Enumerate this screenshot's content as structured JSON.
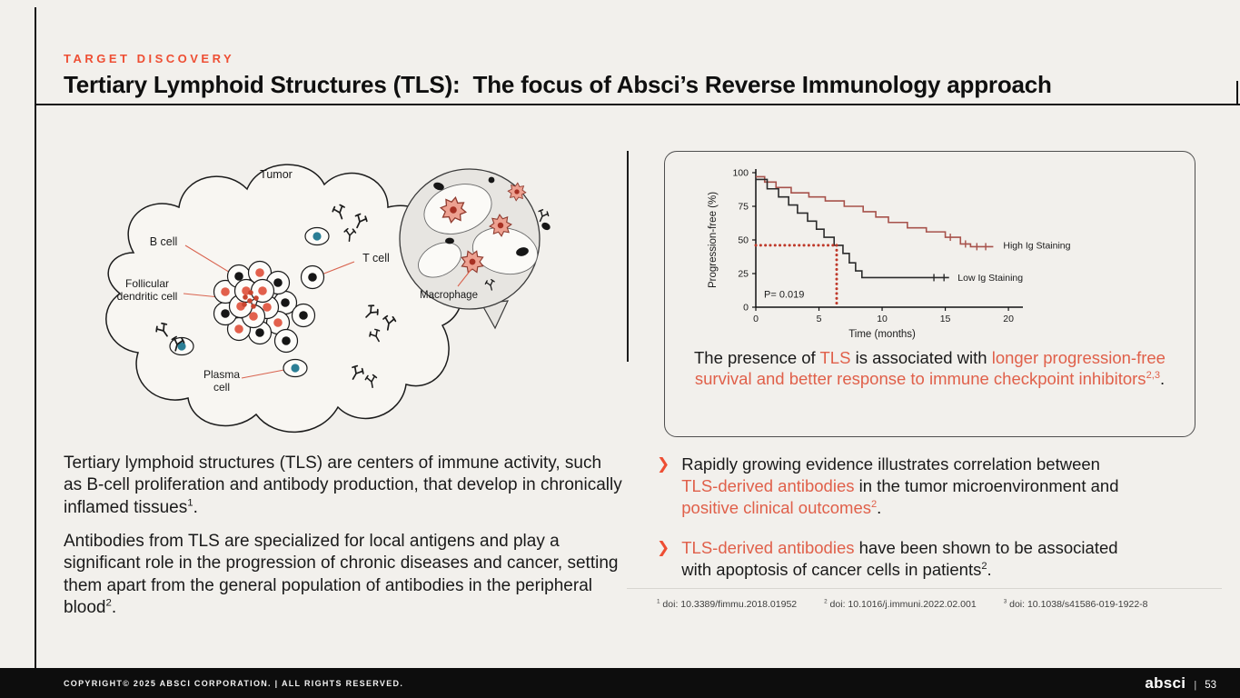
{
  "colors": {
    "ink": "#1a1a1a",
    "accent": "#ee4e33",
    "accentSoft": "#e0604a",
    "chartRed": "#a7524b",
    "dotRed": "#bf3a2b",
    "teal": "#2b7e95",
    "bg": "#f2f0ec",
    "footerBg": "#0d0d0d"
  },
  "header": {
    "kicker": "TARGET DISCOVERY",
    "title": "Tertiary Lymphoid Structures (TLS):  The focus of Absci’s Reverse Immunology approach"
  },
  "diagram": {
    "labels": {
      "tumor": "Tumor",
      "b_cell": "B cell",
      "t_cell": "T cell",
      "follicular_1": "Follicular",
      "follicular_2": "dendritic cell",
      "plasma_1": "Plasma",
      "plasma_2": "cell",
      "macrophage": "Macrophage"
    }
  },
  "left_text": {
    "para1": [
      {
        "t": "Tertiary lymphoid structures (TLS) are centers of immune activity, such as B-cell proliferation and antibody production, that develop in chronically inflamed tissues",
        "c": "ink"
      },
      {
        "t": "1",
        "c": "ink",
        "sup": true
      },
      {
        "t": ".",
        "c": "ink"
      }
    ],
    "para2": [
      {
        "t": "Antibodies from TLS are specialized for local antigens and play a significant role in the progression of chronic diseases and cancer, setting them apart from the general population of antibodies in the peripheral blood",
        "c": "ink"
      },
      {
        "t": "2",
        "c": "ink",
        "sup": true
      },
      {
        "t": ".",
        "c": "ink"
      }
    ]
  },
  "chart_box": {
    "caption": [
      {
        "t": "The presence of ",
        "c": "ink"
      },
      {
        "t": "TLS",
        "c": "accentSoft"
      },
      {
        "t": " is associated with ",
        "c": "ink"
      },
      {
        "t": "longer progression-free survival and better response to immune checkpoint inhibitors",
        "c": "accentSoft"
      },
      {
        "t": "2,3",
        "c": "accentSoft",
        "sup": true
      },
      {
        "t": ".",
        "c": "ink"
      }
    ]
  },
  "chart_data": {
    "type": "line",
    "subtype": "kaplan-meier step curves",
    "xlabel": "Time (months)",
    "ylabel": "Progression-free (%)",
    "xlim": [
      0,
      21
    ],
    "ylim": [
      0,
      100
    ],
    "x_ticks": [
      0,
      5,
      10,
      15,
      20
    ],
    "y_ticks": [
      0,
      25,
      50,
      75,
      100
    ],
    "p_value": "P= 0.019",
    "grid": false,
    "legend_position": "right-of-curves",
    "series": [
      {
        "name": "High Ig Staining",
        "color": "#a7524b",
        "points": [
          [
            0,
            97
          ],
          [
            0.7,
            97
          ],
          [
            0.7,
            93
          ],
          [
            1.6,
            93
          ],
          [
            1.6,
            89
          ],
          [
            2.8,
            89
          ],
          [
            2.8,
            85
          ],
          [
            4.2,
            85
          ],
          [
            4.2,
            82
          ],
          [
            5.5,
            82
          ],
          [
            5.5,
            79
          ],
          [
            7,
            79
          ],
          [
            7,
            75
          ],
          [
            8.5,
            75
          ],
          [
            8.5,
            71
          ],
          [
            9.5,
            71
          ],
          [
            9.5,
            67
          ],
          [
            10.5,
            67
          ],
          [
            10.5,
            63
          ],
          [
            12,
            63
          ],
          [
            12,
            59
          ],
          [
            13.5,
            59
          ],
          [
            13.5,
            56
          ],
          [
            15,
            56
          ],
          [
            15,
            52
          ],
          [
            16.2,
            52
          ],
          [
            16.2,
            47
          ],
          [
            17,
            47
          ],
          [
            17,
            45
          ],
          [
            18.8,
            45
          ]
        ],
        "censor_marks": [
          [
            15.4,
            52
          ],
          [
            16.6,
            47
          ],
          [
            17.5,
            45
          ],
          [
            18.2,
            45
          ]
        ],
        "label_at": [
          19.3,
          46
        ]
      },
      {
        "name": "Low Ig Staining",
        "color": "#2b2b2b",
        "points": [
          [
            0,
            95
          ],
          [
            0.9,
            95
          ],
          [
            0.9,
            88
          ],
          [
            1.8,
            88
          ],
          [
            1.8,
            82
          ],
          [
            2.6,
            82
          ],
          [
            2.6,
            76
          ],
          [
            3.3,
            76
          ],
          [
            3.3,
            70
          ],
          [
            4.1,
            70
          ],
          [
            4.1,
            64
          ],
          [
            4.8,
            64
          ],
          [
            4.8,
            58
          ],
          [
            5.4,
            58
          ],
          [
            5.4,
            52
          ],
          [
            6.2,
            52
          ],
          [
            6.2,
            46
          ],
          [
            6.9,
            46
          ],
          [
            6.9,
            40
          ],
          [
            7.4,
            40
          ],
          [
            7.4,
            33
          ],
          [
            7.9,
            33
          ],
          [
            7.9,
            27
          ],
          [
            8.4,
            27
          ],
          [
            8.4,
            22
          ],
          [
            15.3,
            22
          ]
        ],
        "censor_marks": [
          [
            14.1,
            22
          ],
          [
            14.9,
            22
          ]
        ],
        "label_at": [
          15.7,
          22
        ]
      }
    ],
    "median_marker": {
      "x": 6.4,
      "y": 46,
      "style": "dotted",
      "color": "#bf3a2b"
    }
  },
  "bullets": [
    {
      "marker": "❯",
      "segments": [
        {
          "t": "Rapidly growing evidence illustrates correlation between ",
          "c": "ink"
        },
        {
          "t": "TLS-derived antibodies",
          "c": "accentSoft"
        },
        {
          "t": " in the tumor microenvironment and ",
          "c": "ink"
        },
        {
          "t": "positive clinical outcomes",
          "c": "accentSoft"
        },
        {
          "t": "2",
          "c": "accentSoft",
          "sup": true
        },
        {
          "t": ".",
          "c": "ink"
        }
      ]
    },
    {
      "marker": "❯",
      "segments": [
        {
          "t": "TLS-derived antibodies",
          "c": "accentSoft"
        },
        {
          "t": " have been shown to be associated with apoptosis of cancer cells in patients",
          "c": "ink"
        },
        {
          "t": "2",
          "c": "ink",
          "sup": true
        },
        {
          "t": ".",
          "c": "ink"
        }
      ]
    }
  ],
  "footnotes": [
    {
      "sup": "1",
      "text": " doi: 10.3389/fimmu.2018.01952"
    },
    {
      "sup": "2",
      "text": " doi: 10.1016/j.immuni.2022.02.001"
    },
    {
      "sup": "3",
      "text": " doi: 10.1038/s41586-019-1922-8"
    }
  ],
  "footer": {
    "copyright": "COPYRIGHT© 2025 ABSCI CORPORATION.  |  ALL RIGHTS RESERVED.",
    "logo": "absci",
    "separator": "|",
    "page": "53"
  }
}
